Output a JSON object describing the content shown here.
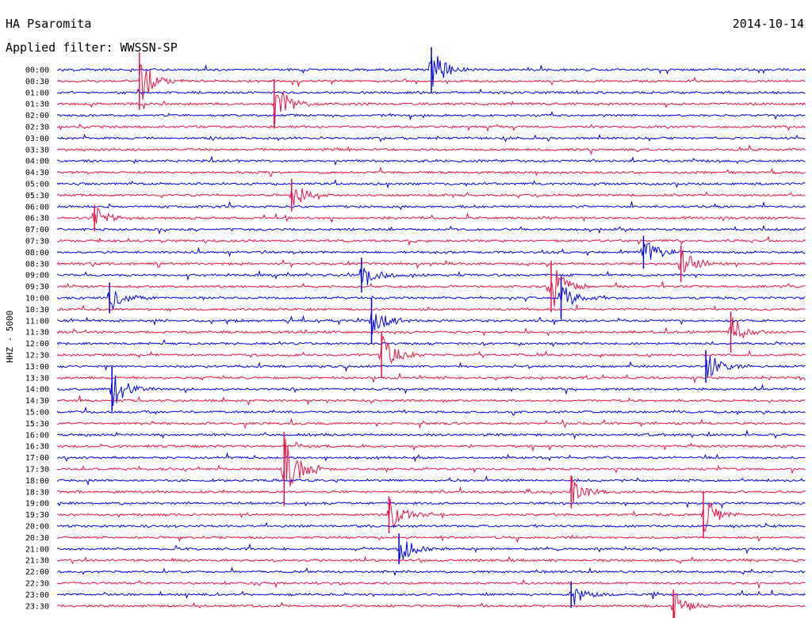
{
  "header": {
    "station": "HA Psaromita",
    "date": "2014-10-14",
    "filter": "Applied filter: WWSSN-SP"
  },
  "chart_data": {
    "type": "line",
    "title": "HA Psaromita",
    "ylabel": "HHZ - 5000",
    "colors": [
      "#0000ee",
      "#ee1144"
    ],
    "rows": [
      "00:00",
      "00:30",
      "01:00",
      "01:30",
      "02:00",
      "02:30",
      "03:00",
      "03:30",
      "04:00",
      "04:30",
      "05:00",
      "05:30",
      "06:00",
      "06:30",
      "07:00",
      "07:30",
      "08:00",
      "08:30",
      "09:00",
      "09:30",
      "10:00",
      "10:30",
      "11:00",
      "11:30",
      "12:00",
      "12:30",
      "13:00",
      "13:30",
      "14:00",
      "14:30",
      "15:00",
      "15:30",
      "16:00",
      "16:30",
      "17:00",
      "17:30",
      "18:00",
      "18:30",
      "19:00",
      "19:30",
      "20:00",
      "20:30",
      "21:00",
      "21:30",
      "22:00",
      "22:30",
      "23:00",
      "23:30"
    ],
    "events": [
      {
        "row": "00:00",
        "minute": 15.0,
        "amplitude": 2.2
      },
      {
        "row": "00:30",
        "minute": 3.3,
        "amplitude": 2.8
      },
      {
        "row": "01:30",
        "minute": 8.7,
        "amplitude": 2.4
      },
      {
        "row": "05:30",
        "minute": 9.4,
        "amplitude": 1.6
      },
      {
        "row": "06:30",
        "minute": 1.5,
        "amplitude": 1.3
      },
      {
        "row": "08:00",
        "minute": 23.5,
        "amplitude": 1.6
      },
      {
        "row": "08:30",
        "minute": 25.0,
        "amplitude": 1.8
      },
      {
        "row": "09:00",
        "minute": 12.2,
        "amplitude": 1.7
      },
      {
        "row": "09:30",
        "minute": 19.8,
        "amplitude": 2.5
      },
      {
        "row": "10:00",
        "minute": 2.1,
        "amplitude": 1.5
      },
      {
        "row": "10:00",
        "minute": 20.2,
        "amplitude": 2.1
      },
      {
        "row": "11:00",
        "minute": 12.6,
        "amplitude": 2.2
      },
      {
        "row": "11:30",
        "minute": 27.0,
        "amplitude": 2.0
      },
      {
        "row": "12:30",
        "minute": 13.0,
        "amplitude": 2.2
      },
      {
        "row": "13:00",
        "minute": 26.0,
        "amplitude": 1.6
      },
      {
        "row": "14:00",
        "minute": 2.2,
        "amplitude": 2.2
      },
      {
        "row": "17:30",
        "minute": 9.1,
        "amplitude": 3.6
      },
      {
        "row": "18:30",
        "minute": 20.6,
        "amplitude": 1.6
      },
      {
        "row": "19:30",
        "minute": 13.3,
        "amplitude": 1.8
      },
      {
        "row": "19:30",
        "minute": 25.9,
        "amplitude": 2.3
      },
      {
        "row": "21:00",
        "minute": 13.7,
        "amplitude": 1.5
      },
      {
        "row": "23:00",
        "minute": 20.6,
        "amplitude": 1.3
      },
      {
        "row": "23:30",
        "minute": 24.7,
        "amplitude": 1.6
      }
    ]
  }
}
